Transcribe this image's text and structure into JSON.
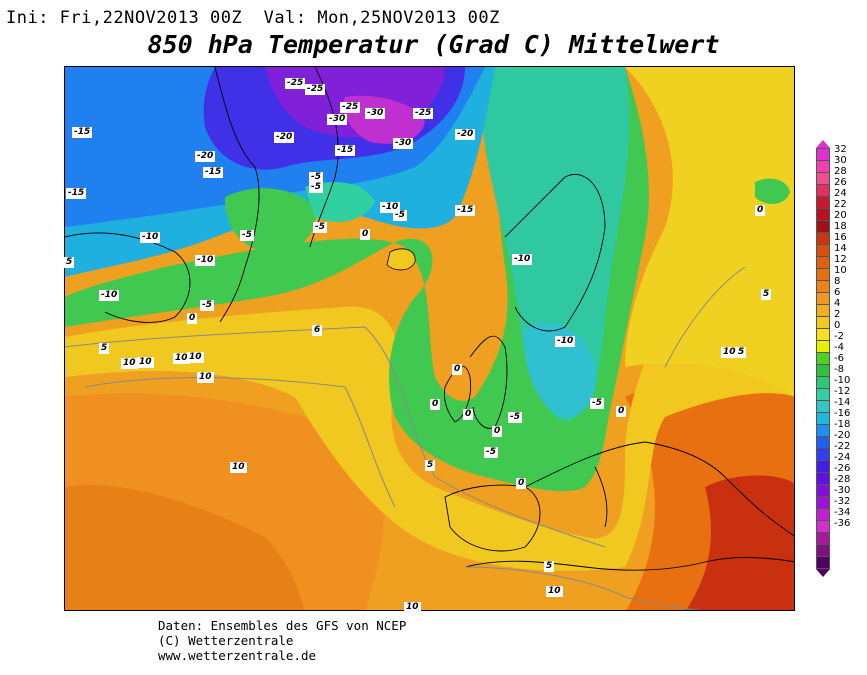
{
  "header": {
    "init": "Ini: Fri,22NOV2013 00Z",
    "valid": "Val: Mon,25NOV2013 00Z"
  },
  "title": "850 hPa Temperatur (Grad C) Mittelwert",
  "footer": {
    "line1": "Daten: Ensembles des GFS von NCEP",
    "line2": "(C) Wetterzentrale",
    "line3": "www.wetterzentrale.de"
  },
  "legend": {
    "values": [
      "32",
      "30",
      "28",
      "26",
      "24",
      "22",
      "20",
      "18",
      "16",
      "14",
      "12",
      "10",
      "8",
      "6",
      "4",
      "2",
      "0",
      "-2",
      "-4",
      "-6",
      "-8",
      "-10",
      "-12",
      "-14",
      "-16",
      "-18",
      "-20",
      "-22",
      "-24",
      "-26",
      "-28",
      "-30",
      "-32",
      "-34",
      "-36"
    ],
    "colors": [
      "#e030d0",
      "#f040b0",
      "#f05090",
      "#e03060",
      "#c81830",
      "#b81020",
      "#a01018",
      "#c83810",
      "#d85010",
      "#e06010",
      "#e87010",
      "#f08018",
      "#f09820",
      "#f0b020",
      "#f0c820",
      "#f8e020",
      "#e8f000",
      "#50d020",
      "#30c040",
      "#30c878",
      "#30d0a0",
      "#30c8c0",
      "#20b8e0",
      "#2090f0",
      "#2060f0",
      "#3040f0",
      "#4020e8",
      "#6010e0",
      "#8010d8",
      "#a010d8",
      "#c020d0",
      "#d030d0",
      "#a81898",
      "#801080",
      "#500060"
    ]
  },
  "contour_labels": [
    {
      "text": "-15"
    },
    {
      "text": "-15"
    },
    {
      "text": "-25"
    },
    {
      "text": "-25"
    },
    {
      "text": "-25"
    },
    {
      "text": "-30"
    },
    {
      "text": "-30"
    },
    {
      "text": "-25"
    },
    {
      "text": "-30"
    },
    {
      "text": "-20"
    },
    {
      "text": "-20"
    },
    {
      "text": "-15"
    },
    {
      "text": "-20"
    },
    {
      "text": "-15"
    },
    {
      "text": "-5"
    },
    {
      "text": "-10"
    },
    {
      "text": "-5"
    },
    {
      "text": "-15"
    },
    {
      "text": "-10"
    },
    {
      "text": "-5"
    },
    {
      "text": "-5"
    },
    {
      "text": "0"
    },
    {
      "text": "-10"
    },
    {
      "text": "5"
    },
    {
      "text": "-10"
    },
    {
      "text": "-10"
    },
    {
      "text": "-5"
    },
    {
      "text": "0"
    },
    {
      "text": "6"
    },
    {
      "text": "5"
    },
    {
      "text": "10"
    },
    {
      "text": "10"
    },
    {
      "text": "10"
    },
    {
      "text": "10"
    },
    {
      "text": "10"
    },
    {
      "text": "-10"
    },
    {
      "text": "0"
    },
    {
      "text": "0"
    },
    {
      "text": "0"
    },
    {
      "text": "-5"
    },
    {
      "text": "-5"
    },
    {
      "text": "0"
    },
    {
      "text": "0"
    },
    {
      "text": "-5"
    },
    {
      "text": "0"
    },
    {
      "text": "5"
    },
    {
      "text": "10"
    },
    {
      "text": "5"
    },
    {
      "text": "10"
    },
    {
      "text": "10"
    },
    {
      "text": "5"
    },
    {
      "text": "10"
    },
    {
      "text": "0"
    },
    {
      "text": "5"
    },
    {
      "text": "-5"
    }
  ]
}
